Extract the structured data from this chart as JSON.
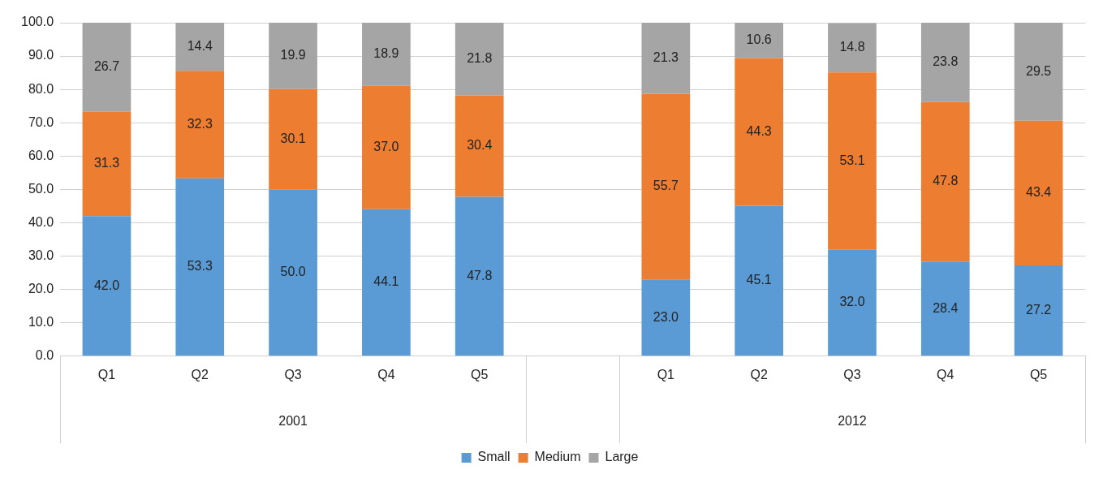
{
  "chart_data": {
    "type": "bar",
    "stacked": true,
    "categories": [
      "Q1",
      "Q2",
      "Q3",
      "Q4",
      "Q5",
      null,
      "Q1",
      "Q2",
      "Q3",
      "Q4",
      "Q5"
    ],
    "series": [
      {
        "name": "Small",
        "color": "#5b9bd5",
        "values": [
          42.0,
          53.3,
          50.0,
          44.1,
          47.8,
          null,
          23.0,
          45.1,
          32.0,
          28.4,
          27.2
        ],
        "value_labels": [
          "42.0",
          "53.3",
          "50.0",
          "44.1",
          "47.8",
          null,
          "23.0",
          "45.1",
          "32.0",
          "28.4",
          "27.2"
        ]
      },
      {
        "name": "Medium",
        "color": "#ed7d31",
        "values": [
          31.3,
          32.3,
          30.1,
          37.0,
          30.4,
          null,
          55.7,
          44.3,
          53.1,
          47.8,
          43.4
        ],
        "value_labels": [
          "31.3",
          "32.3",
          "30.1",
          "37.0",
          "30.4",
          null,
          "55.7",
          "44.3",
          "53.1",
          "47.8",
          "43.4"
        ]
      },
      {
        "name": "Large",
        "color": "#a5a5a5",
        "values": [
          26.7,
          14.4,
          19.9,
          18.9,
          21.8,
          null,
          21.3,
          10.6,
          14.8,
          23.8,
          29.5
        ],
        "value_labels": [
          "26.7",
          "14.4",
          "19.9",
          "18.9",
          "21.8",
          null,
          "21.3",
          "10.6",
          "14.8",
          "23.8",
          "29.5"
        ]
      }
    ],
    "ylim": [
      0,
      100
    ],
    "yticks": [
      {
        "value": 0,
        "label": "0.0"
      },
      {
        "value": 10,
        "label": "10.0"
      },
      {
        "value": 20,
        "label": "20.0"
      },
      {
        "value": 30,
        "label": "30.0"
      },
      {
        "value": 40,
        "label": "40.0"
      },
      {
        "value": 50,
        "label": "50.0"
      },
      {
        "value": 60,
        "label": "60.0"
      },
      {
        "value": 70,
        "label": "70.0"
      },
      {
        "value": 80,
        "label": "80.0"
      },
      {
        "value": 90,
        "label": "90.0"
      },
      {
        "value": 100,
        "label": "100.0"
      }
    ],
    "annotations": [
      "2001",
      "2012"
    ],
    "grid": "y",
    "legend": "bottom"
  }
}
